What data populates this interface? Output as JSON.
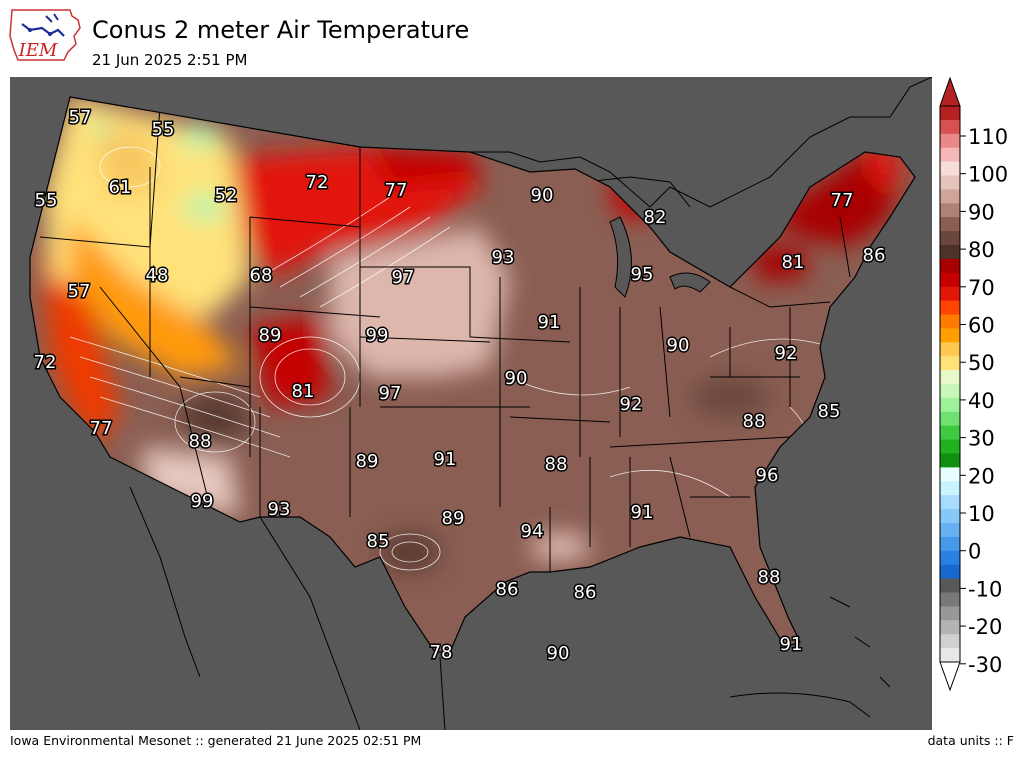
{
  "header": {
    "logo_text": "IEM",
    "title": "Conus 2 meter Air Temperature",
    "subtitle": "21 Jun 2025 2:51 PM"
  },
  "footer": {
    "left": "Iowa Environmental Mesonet :: generated 21 June 2025 02:51 PM",
    "right": "data units :: F"
  },
  "colors": {
    "background": "#585858",
    "cold_west": "#ffe27a",
    "hot_red": "#e2170a",
    "brown": "#8a5e52",
    "light_brown": "#ddb6ac"
  },
  "colorbar": {
    "ticks": [
      "110",
      "100",
      "90",
      "80",
      "70",
      "60",
      "50",
      "40",
      "30",
      "20",
      "10",
      "0",
      "-10",
      "-20",
      "-30"
    ]
  },
  "map_labels": [
    {
      "text": "57"
    },
    {
      "text": "55"
    },
    {
      "text": "61"
    },
    {
      "text": "55"
    },
    {
      "text": "52"
    },
    {
      "text": "72"
    },
    {
      "text": "77"
    },
    {
      "text": "90"
    },
    {
      "text": "82"
    },
    {
      "text": "77"
    },
    {
      "text": "86"
    },
    {
      "text": "81"
    },
    {
      "text": "93"
    },
    {
      "text": "95"
    },
    {
      "text": "48"
    },
    {
      "text": "68"
    },
    {
      "text": "97"
    },
    {
      "text": "57"
    },
    {
      "text": "89"
    },
    {
      "text": "99"
    },
    {
      "text": "91"
    },
    {
      "text": "90"
    },
    {
      "text": "92"
    },
    {
      "text": "72"
    },
    {
      "text": "81"
    },
    {
      "text": "97"
    },
    {
      "text": "90"
    },
    {
      "text": "92"
    },
    {
      "text": "85"
    },
    {
      "text": "77"
    },
    {
      "text": "88"
    },
    {
      "text": "88"
    },
    {
      "text": "96"
    },
    {
      "text": "89"
    },
    {
      "text": "91"
    },
    {
      "text": "88"
    },
    {
      "text": "99"
    },
    {
      "text": "93"
    },
    {
      "text": "89"
    },
    {
      "text": "91"
    },
    {
      "text": "94"
    },
    {
      "text": "85"
    },
    {
      "text": "86"
    },
    {
      "text": "86"
    },
    {
      "text": "88"
    },
    {
      "text": "78"
    },
    {
      "text": "90"
    },
    {
      "text": "91"
    }
  ]
}
